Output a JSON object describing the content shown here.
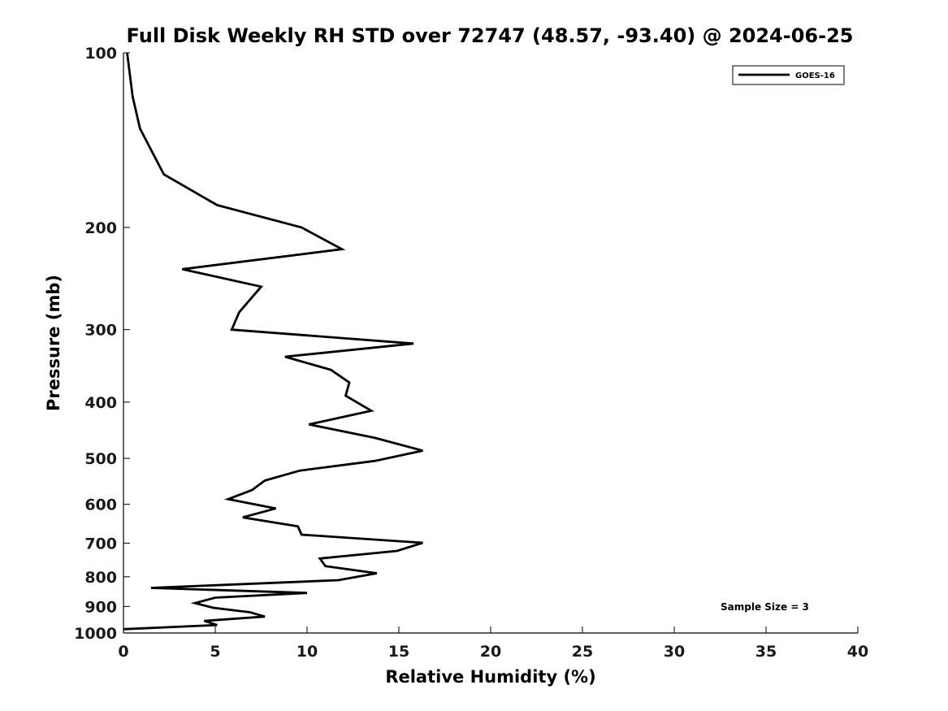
{
  "chart_data": {
    "type": "line",
    "title": "Full Disk Weekly RH STD over 72747 (48.57, -93.40) @ 2024-06-25",
    "xlabel": "Relative Humidity (%)",
    "ylabel": "Pressure (mb)",
    "xlim": [
      0,
      40
    ],
    "ylim": [
      1000,
      100
    ],
    "y_scale": "log",
    "y_inverted": true,
    "grid": false,
    "legend_position": "top-right",
    "x_ticks": [
      "0",
      "5",
      "10",
      "15",
      "20",
      "25",
      "30",
      "35",
      "40"
    ],
    "y_ticks": [
      "100",
      "200",
      "300",
      "400",
      "500",
      "600",
      "700",
      "800",
      "900",
      "1000"
    ],
    "series": [
      {
        "name": "GOES-16",
        "color": "#000000",
        "points": [
          [
            0.2,
            100
          ],
          [
            0.5,
            119
          ],
          [
            0.9,
            135
          ],
          [
            2.2,
            162
          ],
          [
            5.1,
            183
          ],
          [
            9.7,
            200
          ],
          [
            11.9,
            218
          ],
          [
            3.2,
            236
          ],
          [
            7.5,
            253
          ],
          [
            6.3,
            280
          ],
          [
            5.9,
            300
          ],
          [
            15.8,
            317
          ],
          [
            8.8,
            334
          ],
          [
            11.3,
            352
          ],
          [
            12.3,
            370
          ],
          [
            12.1,
            390
          ],
          [
            13.5,
            414
          ],
          [
            10.1,
            437
          ],
          [
            13.7,
            461
          ],
          [
            16.3,
            485
          ],
          [
            13.7,
            505
          ],
          [
            9.6,
            525
          ],
          [
            7.7,
            546
          ],
          [
            7.0,
            567
          ],
          [
            5.7,
            588
          ],
          [
            8.3,
            610
          ],
          [
            6.5,
            632
          ],
          [
            9.5,
            655
          ],
          [
            9.7,
            677
          ],
          [
            16.3,
            699
          ],
          [
            14.9,
            722
          ],
          [
            10.7,
            744
          ],
          [
            11.0,
            767
          ],
          [
            13.8,
            789
          ],
          [
            11.7,
            811
          ],
          [
            1.5,
            836
          ],
          [
            10.0,
            853
          ],
          [
            5.0,
            869
          ],
          [
            3.9,
            888
          ],
          [
            4.9,
            905
          ],
          [
            6.9,
            921
          ],
          [
            7.7,
            937
          ],
          [
            4.4,
            953
          ],
          [
            5.1,
            969
          ],
          [
            0.0,
            985
          ]
        ]
      }
    ],
    "annotations": [
      "Sample Size = 3"
    ]
  },
  "colors": {
    "line": "#000000",
    "axis": "#1a1a1a",
    "background": "#ffffff"
  }
}
